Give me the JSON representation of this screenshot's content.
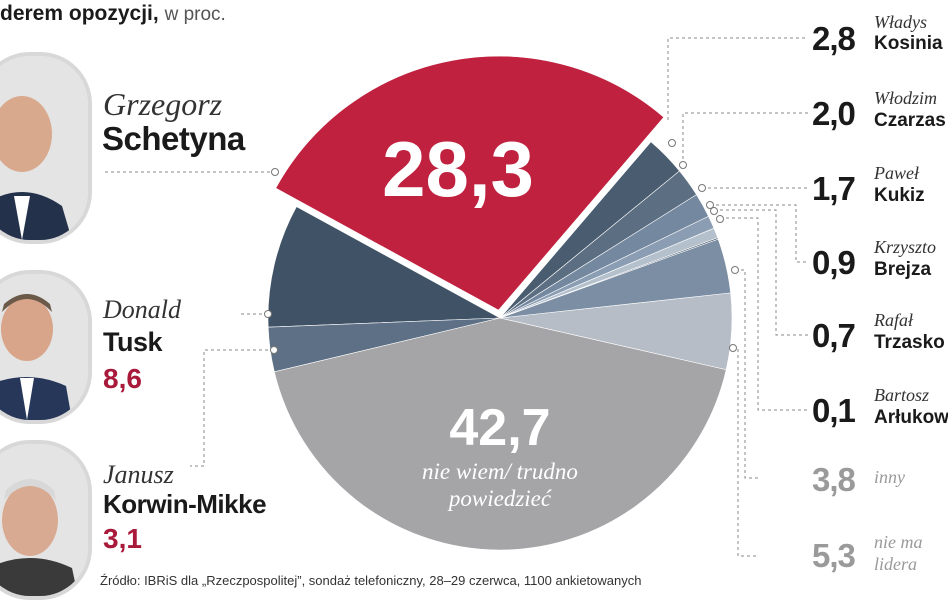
{
  "header": {
    "bold": "derem opozycji,",
    "unit": "w proc."
  },
  "left_people": [
    {
      "first": "Grzegorz",
      "last": "Schetyna",
      "value": ""
    },
    {
      "first": "Donald",
      "last": "Tusk",
      "value": "8,6"
    },
    {
      "first": "Janusz",
      "last": "Korwin-Mikke",
      "value": "3,1"
    }
  ],
  "pie_labels": {
    "big": "28,3",
    "bottom_value": "42,7",
    "bottom_text_line1": "nie wiem/ trudno",
    "bottom_text_line2": "powiedzieć"
  },
  "right_items": [
    {
      "value": "2,8",
      "first": "Władys",
      "last": "Kosinia"
    },
    {
      "value": "2,0",
      "first": "Włodzim",
      "last": "Czarzas"
    },
    {
      "value": "1,7",
      "first": "Paweł",
      "last": "Kukiz"
    },
    {
      "value": "0,9",
      "first": "Krzyszto",
      "last": "Brejza"
    },
    {
      "value": "0,7",
      "first": "Rafał",
      "last": "Trzasko"
    },
    {
      "value": "0,1",
      "first": "Bartosz",
      "last": "Arłukow"
    },
    {
      "value": "3,8",
      "first": "inny",
      "last": ""
    },
    {
      "value": "5,3",
      "first": "nie ma",
      "last": "lidera"
    }
  ],
  "source": "Źródło: IBRiS dla „Rzeczpospolitej”, sondaż telefoniczny, 28–29 czerwca, 1100 ankietowanych",
  "colors": {
    "accent": "#c0213f",
    "accent_text": "#a8193a",
    "grey_main": "#a5a5a7",
    "dark_slate": "#3f5266"
  },
  "chart_data": {
    "type": "pie",
    "unit": "w proc.",
    "slices": [
      {
        "label": "Grzegorz Schetyna",
        "value": 28.3,
        "color": "#c0213f"
      },
      {
        "label": "Władys Kosinia",
        "value": 2.8,
        "color": "#4a5d70"
      },
      {
        "label": "Włodzim Czarzas",
        "value": 2.0,
        "color": "#5b6e82"
      },
      {
        "label": "Paweł Kukiz",
        "value": 1.7,
        "color": "#7488a0"
      },
      {
        "label": "Krzyszto Brejza",
        "value": 0.9,
        "color": "#8a9db3"
      },
      {
        "label": "Rafał Trzasko",
        "value": 0.7,
        "color": "#b4c0cc"
      },
      {
        "label": "Bartosz Arłukow",
        "value": 0.1,
        "color": "#3a4d60"
      },
      {
        "label": "inny",
        "value": 3.8,
        "color": "#7b8ea4"
      },
      {
        "label": "nie ma lidera",
        "value": 5.3,
        "color": "#b7bdc6"
      },
      {
        "label": "nie wiem/ trudno powiedzieć",
        "value": 42.7,
        "color": "#a5a5a7"
      },
      {
        "label": "Janusz Korwin-Mikke",
        "value": 3.1,
        "color": "#5d7086"
      },
      {
        "label": "Donald Tusk",
        "value": 8.6,
        "color": "#3f5266"
      }
    ]
  }
}
